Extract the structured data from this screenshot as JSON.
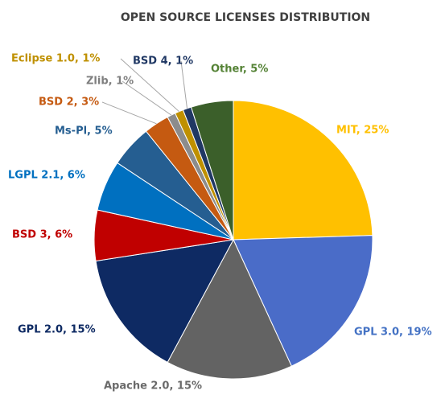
{
  "chart_data": {
    "type": "pie",
    "title": "OPEN SOURCE LICENSES DISTRIBUTION",
    "categories": [
      "MIT",
      "GPL 3.0",
      "Apache 2.0",
      "GPL 2.0",
      "BSD 3",
      "LGPL 2.1",
      "Ms-Pl",
      "BSD 2",
      "Zlib",
      "Eclipse 1.0",
      "BSD 4",
      "Other"
    ],
    "values": [
      25,
      19,
      15,
      15,
      6,
      6,
      5,
      3,
      1,
      1,
      1,
      5
    ],
    "value_labels": [
      "MIT, 25%",
      "GPL 3.0, 19%",
      "Apache 2.0, 15%",
      "GPL 2.0, 15%",
      "BSD 3, 6%",
      "LGPL 2.1, 6%",
      "Ms-Pl, 5%",
      "BSD 2, 3%",
      "Zlib, 1%",
      "Eclipse 1.0, 1%",
      "BSD 4, 1%",
      "Other, 5%"
    ],
    "colors": [
      "#ffc000",
      "#4a6cc8",
      "#636363",
      "#0e2a63",
      "#c00000",
      "#0070c0",
      "#255e91",
      "#c55a11",
      "#8c8c8c",
      "#bf9000",
      "#203864",
      "#3b5f2a"
    ],
    "label_colors": [
      "#ffc000",
      "#4472c4",
      "#6a6a6a",
      "#0e2a63",
      "#c00000",
      "#0070c0",
      "#255e91",
      "#c55a11",
      "#7f7f7f",
      "#bf9000",
      "#203864",
      "#548235"
    ]
  }
}
